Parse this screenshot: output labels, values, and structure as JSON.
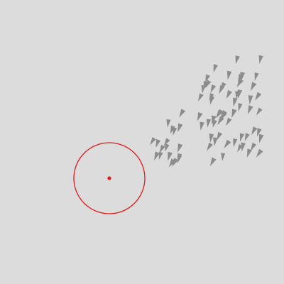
{
  "scene": {
    "background_color": "#dcdcdc",
    "agent_color": "#8c8c8c",
    "target_color": "#dd1c1c",
    "agent_icon": "triangle-arrow-icon",
    "target_icon": "crosshair-ring-icon",
    "agent_count": 110
  }
}
